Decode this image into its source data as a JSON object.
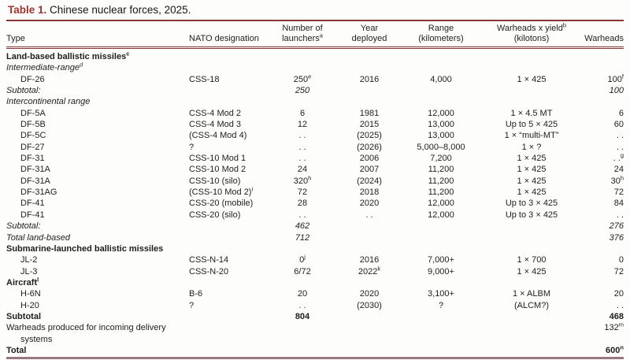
{
  "title": {
    "label": "Table 1.",
    "caption": "Chinese nuclear forces, 2025."
  },
  "colors": {
    "accent": "#9e332e",
    "rule": "#8a3434",
    "bottom_rule": "#97797d",
    "text": "#1e1e1e"
  },
  "table": {
    "columns": [
      {
        "align": "left",
        "lines": [
          {
            "text": "Type"
          }
        ]
      },
      {
        "align": "left",
        "lines": [
          {
            "text": "NATO designation"
          }
        ]
      },
      {
        "align": "center",
        "lines": [
          {
            "text": "Number of"
          },
          {
            "text": "launchers",
            "sup": "a"
          }
        ]
      },
      {
        "align": "center",
        "lines": [
          {
            "text": "Year"
          },
          {
            "text": "deployed"
          }
        ]
      },
      {
        "align": "center",
        "lines": [
          {
            "text": "Range"
          },
          {
            "text": "(kilometers)"
          }
        ]
      },
      {
        "align": "center",
        "lines": [
          {
            "text": "Warheads x yield",
            "sup": "b"
          },
          {
            "text": "(kilotons)"
          }
        ]
      },
      {
        "align": "right",
        "lines": [
          {
            "text": "Warheads"
          }
        ]
      }
    ],
    "rows": [
      {
        "style": "section",
        "cells": [
          {
            "text": "Land-based ballistic missiles",
            "sup": "c"
          },
          "",
          "",
          "",
          "",
          "",
          ""
        ]
      },
      {
        "style": "subhead",
        "cells": [
          {
            "text": "Intermediate-range",
            "sup": "d"
          },
          "",
          "",
          "",
          "",
          "",
          ""
        ]
      },
      {
        "style": "item",
        "cells": [
          "DF-26",
          "CSS-18",
          {
            "text": "250",
            "sup": "e"
          },
          "2016",
          "4,000",
          "1 × 425",
          {
            "text": "100",
            "sup": "f"
          }
        ]
      },
      {
        "style": "subtotal",
        "cells": [
          "Subtotal:",
          "",
          "250",
          "",
          "",
          "",
          "100"
        ]
      },
      {
        "style": "subhead",
        "cells": [
          "Intercontinental range",
          "",
          "",
          "",
          "",
          "",
          ""
        ]
      },
      {
        "style": "item",
        "cells": [
          "DF-5A",
          "CSS-4 Mod 2",
          "6",
          "1981",
          "12,000",
          "1 × 4.5 MT",
          "6"
        ]
      },
      {
        "style": "item",
        "cells": [
          "DF-5B",
          "CSS-4 Mod 3",
          "12",
          "2015",
          "13,000",
          "Up to 5 × 425",
          "60"
        ]
      },
      {
        "style": "item",
        "cells": [
          "DF-5C",
          "(CSS-4 Mod 4)",
          ". .",
          "(2025)",
          "13,000",
          "1 × “multi-MT”",
          ". ."
        ]
      },
      {
        "style": "item",
        "cells": [
          "DF-27",
          "?",
          ". .",
          "(2026)",
          "5,000–8,000",
          "1 × ?",
          ". ."
        ]
      },
      {
        "style": "item",
        "cells": [
          "DF-31",
          "CSS-10 Mod 1",
          ". .",
          "2006",
          "7,200",
          "1 × 425",
          {
            "text": ". .",
            "sup": "g"
          }
        ]
      },
      {
        "style": "item",
        "cells": [
          "DF-31A",
          "CSS-10 Mod 2",
          "24",
          "2007",
          "11,200",
          "1 × 425",
          "24"
        ]
      },
      {
        "style": "item",
        "cells": [
          "DF-31A",
          "CSS-10 (silo)",
          {
            "text": "320",
            "sup": "h"
          },
          "(2024)",
          "11,200",
          "1 × 425",
          {
            "text": "30",
            "sup": "h"
          }
        ]
      },
      {
        "style": "item",
        "cells": [
          "DF-31AG",
          {
            "text": "(CSS-10 Mod 2)",
            "sup": "i"
          },
          "72",
          "2018",
          "11,200",
          "1 × 425",
          "72"
        ]
      },
      {
        "style": "item",
        "cells": [
          "DF-41",
          "CSS-20 (mobile)",
          "28",
          "2020",
          "12,000",
          "Up to 3 × 425",
          "84"
        ]
      },
      {
        "style": "item",
        "cells": [
          "DF-41",
          "CSS-20 (silo)",
          ". .",
          ". .",
          "12,000",
          "Up to 3 × 425",
          ". ."
        ]
      },
      {
        "style": "subtotal",
        "cells": [
          "Subtotal:",
          "",
          "462",
          "",
          "",
          "",
          "276"
        ]
      },
      {
        "style": "subtotal",
        "cells": [
          "Total land-based",
          "",
          "712",
          "",
          "",
          "",
          "376"
        ]
      },
      {
        "style": "section",
        "cells": [
          "Submarine-launched ballistic missiles",
          "",
          "",
          "",
          "",
          "",
          ""
        ]
      },
      {
        "style": "item",
        "cells": [
          "JL-2",
          "CSS-N-14",
          {
            "text": "0",
            "sup": "j"
          },
          "2016",
          "7,000+",
          "1 × 700",
          "0"
        ]
      },
      {
        "style": "item",
        "cells": [
          "JL-3",
          "CSS-N-20",
          "6/72",
          {
            "text": "2022",
            "sup": "k"
          },
          "9,000+",
          "1 × 425",
          "72"
        ]
      },
      {
        "style": "section",
        "cells": [
          {
            "text": "Aircraft",
            "sup": "l"
          },
          "",
          "",
          "",
          "",
          "",
          ""
        ]
      },
      {
        "style": "item",
        "cells": [
          "H-6N",
          "B-6",
          "20",
          "2020",
          "3,100+",
          "1 × ALBM",
          "20"
        ]
      },
      {
        "style": "item",
        "cells": [
          "H-20",
          "?",
          ". .",
          "(2030)",
          "?",
          "(ALCM?)",
          ". ."
        ]
      },
      {
        "style": "grandtotal",
        "cells": [
          "Subtotal",
          "",
          "804",
          "",
          "",
          "",
          "468"
        ]
      },
      {
        "style": "plain",
        "wrap": true,
        "cells": [
          "Warheads produced for incoming delivery systems",
          "",
          "",
          "",
          "",
          "",
          {
            "text": "132",
            "sup": "m"
          }
        ]
      },
      {
        "style": "grandtotal",
        "cells": [
          "Total",
          "",
          "",
          "",
          "",
          "",
          {
            "text": "600",
            "sup": "n"
          }
        ]
      }
    ]
  }
}
